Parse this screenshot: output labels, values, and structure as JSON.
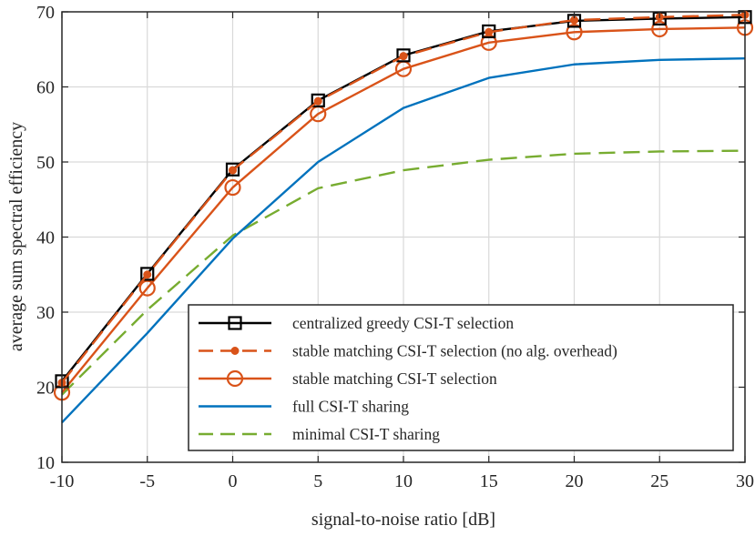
{
  "chart_data": {
    "type": "line",
    "title": "",
    "xlabel": "signal-to-noise ratio [dB]",
    "ylabel": "average sum spectral efficiency",
    "xlim": [
      -10,
      30
    ],
    "ylim": [
      10,
      70
    ],
    "grid": true,
    "x": [
      -10,
      -5,
      0,
      5,
      10,
      15,
      20,
      25,
      30
    ],
    "xticks": [
      -10,
      -5,
      0,
      5,
      10,
      15,
      20,
      25,
      30
    ],
    "xtick_labels": [
      "-10",
      "-5",
      "0",
      "5",
      "10",
      "15",
      "20",
      "25",
      "30"
    ],
    "yticks": [
      10,
      20,
      30,
      40,
      50,
      60,
      70
    ],
    "ytick_labels": [
      "10",
      "20",
      "30",
      "40",
      "50",
      "60",
      "70"
    ],
    "legend_position": "bottom-right",
    "series": [
      {
        "name": "centralized greedy CSI-T selection",
        "color": "#000000",
        "line_style": "solid",
        "marker": "square",
        "values": [
          20.8,
          35.1,
          49.0,
          58.2,
          64.2,
          67.4,
          68.8,
          69.1,
          69.3
        ]
      },
      {
        "name": "stable matching CSI-T selection (no alg. overhead)",
        "color": "#D95319",
        "line_style": "dashed",
        "marker": "dot",
        "values": [
          20.6,
          35.0,
          48.9,
          58.1,
          64.1,
          67.3,
          68.9,
          69.3,
          69.6
        ]
      },
      {
        "name": "stable matching CSI-T selection",
        "color": "#D95319",
        "line_style": "solid",
        "marker": "circle",
        "values": [
          19.3,
          33.2,
          46.6,
          56.4,
          62.4,
          65.9,
          67.3,
          67.7,
          67.9
        ]
      },
      {
        "name": "full CSI-T sharing",
        "color": "#0072BD",
        "line_style": "solid",
        "marker": "none",
        "values": [
          15.3,
          27.2,
          39.8,
          50.0,
          57.2,
          61.2,
          63.0,
          63.6,
          63.8
        ]
      },
      {
        "name": "minimal CSI-T sharing",
        "color": "#77AC30",
        "line_style": "dashed",
        "marker": "none",
        "values": [
          19.0,
          30.3,
          40.2,
          46.5,
          48.9,
          50.3,
          51.1,
          51.4,
          51.5
        ]
      }
    ]
  }
}
